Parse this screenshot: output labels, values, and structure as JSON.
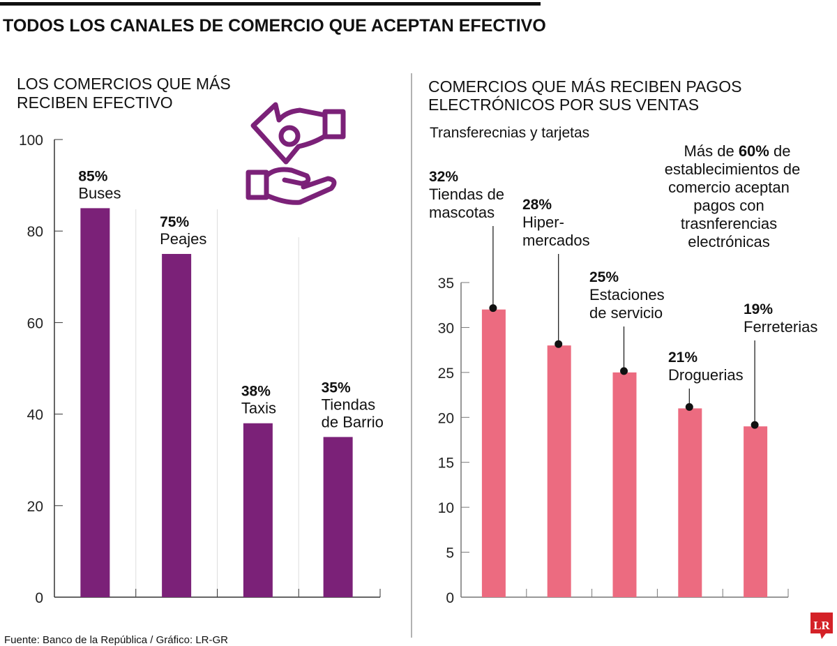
{
  "header": {
    "title": "TODOS LOS CANALES DE COMERCIO QUE ACEPTAN EFECTIVO"
  },
  "footer": {
    "source": "Fuente: Banco de la República / Gráfico: LR-GR",
    "logo_text": "LR"
  },
  "icon": "hand-giving-money-icon",
  "chart_data": [
    {
      "type": "bar",
      "title": [
        "LOS COMERCIOS QUE MÁS",
        "RECIBEN EFECTIVO"
      ],
      "categories": [
        "Buses",
        "Peajes",
        "Taxis",
        "Tiendas de Barrio"
      ],
      "label_lines": [
        [
          "Buses"
        ],
        [
          "Peajes"
        ],
        [
          "Taxis"
        ],
        [
          "Tiendas",
          "de Barrio"
        ]
      ],
      "values": [
        85,
        75,
        38,
        35
      ],
      "data_labels": [
        "85%",
        "75%",
        "38%",
        "35%"
      ],
      "ylim": [
        0,
        100
      ],
      "yticks": [
        0,
        20,
        40,
        60,
        80,
        100
      ],
      "color": "#7B2178",
      "grid": false
    },
    {
      "type": "bar",
      "title": [
        "COMERCIOS QUE MÁS RECIBEN PAGOS",
        "ELECTRÓNICOS POR SUS VENTAS"
      ],
      "subtitle": "Transferecnias y tarjetas",
      "categories": [
        "Tiendas de mascotas",
        "Hipermercados",
        "Estaciones de servicio",
        "Droguerias",
        "Ferreterias"
      ],
      "label_lines": [
        [
          "Tiendas de",
          "mascotas"
        ],
        [
          "Hiper-",
          "mercados"
        ],
        [
          "Estaciones",
          "de servicio"
        ],
        [
          "Droguerias"
        ],
        [
          "Ferreterias"
        ]
      ],
      "values": [
        32,
        28,
        25,
        21,
        19
      ],
      "data_labels": [
        "32%",
        "28%",
        "25%",
        "21%",
        "19%"
      ],
      "ylim": [
        0,
        35
      ],
      "yticks": [
        0,
        5,
        10,
        15,
        20,
        25,
        30,
        35
      ],
      "color": "#EC6B80",
      "grid": false,
      "annotation": {
        "before": "Más de ",
        "bold": "60%",
        "after": " de",
        "lines": [
          "establecimientos de",
          "comercio aceptan",
          "pagos con",
          "trasnferencias",
          "electrónicas"
        ]
      }
    }
  ]
}
